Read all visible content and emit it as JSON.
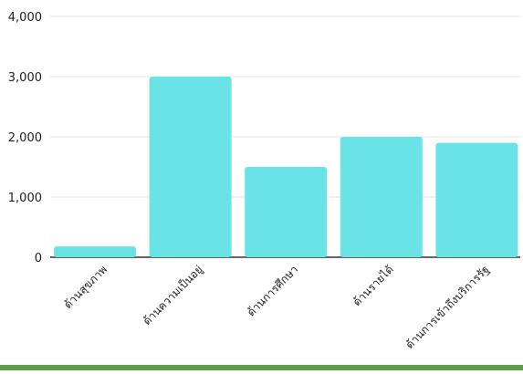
{
  "chart_data": {
    "type": "bar",
    "categories": [
      "ด้านสุขภาพ",
      "ด้านความเป็นอยู่",
      "ด้านการศึกษา",
      "ด้านรายได้",
      "ด้านการเข้าถึงบริการรัฐ"
    ],
    "values": [
      180,
      3000,
      1500,
      2000,
      1900
    ],
    "ylim": [
      0,
      4000
    ],
    "yticks": [
      "0",
      "1,000",
      "2,000",
      "3,000",
      "4,000"
    ],
    "grid": true,
    "bar_color": "#6ae3e6",
    "axis_color": "#333333",
    "grid_color": "#e6e6e6",
    "label_color": "#222222"
  },
  "footer": {
    "strip_color": "#5aa04a"
  }
}
